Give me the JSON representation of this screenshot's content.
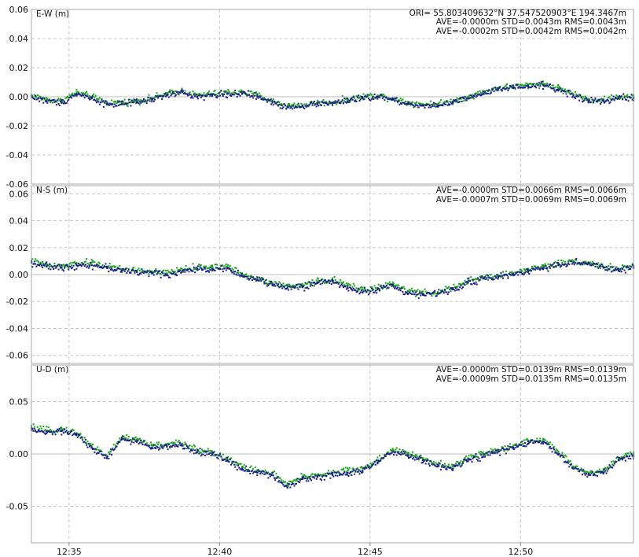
{
  "colors": {
    "series_green": "#12a312",
    "series_blue": "#1a1a8a",
    "grid": "#c8c8c8",
    "zero_line": "#bdbdbd",
    "panel_border": "#aaaaaa",
    "background": "#ffffff"
  },
  "header": {
    "origin_text": "ORI= 55.803409632°N  37.547520903°E 194.3467m"
  },
  "x_axis": {
    "range": [
      "12:33:45",
      "12:53:45"
    ],
    "ticks": [
      "12:35",
      "12:40",
      "12:45",
      "12:50"
    ]
  },
  "chart_data": [
    {
      "type": "scatter",
      "ylabel": "E-W (m)",
      "ylim": [
        -0.06,
        0.06
      ],
      "yticks": [
        "0.06",
        "0.04",
        "0.02",
        "0.00",
        "-0.02",
        "-0.04",
        "-0.06"
      ],
      "stats": [
        "AVE=-0.0000m STD=0.0043m RMS=0.0043m",
        "AVE=-0.0002m STD=0.0042m RMS=0.0042m"
      ],
      "grid": true,
      "series": [
        {
          "x": [
            "12:33:45",
            "12:34:15",
            "12:34:45",
            "12:35:15",
            "12:35:45",
            "12:36:15",
            "12:36:45",
            "12:37:15",
            "12:37:45",
            "12:38:15",
            "12:38:45",
            "12:39:15",
            "12:39:45",
            "12:40:15",
            "12:40:45",
            "12:41:15",
            "12:41:45",
            "12:42:15",
            "12:42:45",
            "12:43:15",
            "12:43:45",
            "12:44:15",
            "12:44:45",
            "12:45:15",
            "12:45:45",
            "12:46:15",
            "12:46:45",
            "12:47:15",
            "12:47:45",
            "12:48:15",
            "12:48:45",
            "12:49:15",
            "12:49:45",
            "12:50:15",
            "12:50:45",
            "12:51:15",
            "12:51:45",
            "12:52:15",
            "12:52:45",
            "12:53:15",
            "12:53:45"
          ],
          "values": [
            0.001,
            -0.002,
            -0.003,
            0.003,
            0.0,
            -0.004,
            -0.004,
            -0.003,
            -0.001,
            0.002,
            0.004,
            0.001,
            0.002,
            0.003,
            0.003,
            0.001,
            -0.003,
            -0.006,
            -0.006,
            -0.004,
            -0.004,
            -0.002,
            0.0,
            0.001,
            -0.001,
            -0.004,
            -0.005,
            -0.005,
            -0.003,
            0.0,
            0.003,
            0.006,
            0.007,
            0.008,
            0.009,
            0.006,
            0.002,
            -0.002,
            -0.002,
            0.0,
            0.0
          ]
        },
        {
          "x": [
            "12:33:45",
            "12:34:15",
            "12:34:45",
            "12:35:15",
            "12:35:45",
            "12:36:15",
            "12:36:45",
            "12:37:15",
            "12:37:45",
            "12:38:15",
            "12:38:45",
            "12:39:15",
            "12:39:45",
            "12:40:15",
            "12:40:45",
            "12:41:15",
            "12:41:45",
            "12:42:15",
            "12:42:45",
            "12:43:15",
            "12:43:45",
            "12:44:15",
            "12:44:45",
            "12:45:15",
            "12:45:45",
            "12:46:15",
            "12:46:45",
            "12:47:15",
            "12:47:45",
            "12:48:15",
            "12:48:45",
            "12:49:15",
            "12:49:45",
            "12:50:15",
            "12:50:45",
            "12:51:15",
            "12:51:45",
            "12:52:15",
            "12:52:45",
            "12:53:15",
            "12:53:45"
          ],
          "values": [
            0.0,
            -0.003,
            -0.004,
            0.002,
            -0.001,
            -0.005,
            -0.005,
            -0.004,
            -0.002,
            0.001,
            0.003,
            0.0,
            0.001,
            0.002,
            0.002,
            0.0,
            -0.004,
            -0.007,
            -0.006,
            -0.005,
            -0.004,
            -0.003,
            -0.001,
            0.0,
            -0.002,
            -0.005,
            -0.006,
            -0.006,
            -0.004,
            -0.001,
            0.002,
            0.005,
            0.006,
            0.007,
            0.008,
            0.005,
            0.001,
            -0.003,
            -0.003,
            -0.001,
            -0.001
          ]
        }
      ]
    },
    {
      "type": "scatter",
      "ylabel": "N-S (m)",
      "ylim": [
        -0.066,
        0.066
      ],
      "yticks": [
        "0.06",
        "0.04",
        "0.02",
        "0.00",
        "-0.02",
        "-0.04",
        "-0.06"
      ],
      "stats": [
        "AVE=-0.0000m STD=0.0066m RMS=0.0066m",
        "AVE=-0.0007m STD=0.0069m RMS=0.0069m"
      ],
      "grid": true,
      "series": [
        {
          "x": [
            "12:33:45",
            "12:34:15",
            "12:34:45",
            "12:35:15",
            "12:35:45",
            "12:36:15",
            "12:36:45",
            "12:37:15",
            "12:37:45",
            "12:38:15",
            "12:38:45",
            "12:39:15",
            "12:39:45",
            "12:40:15",
            "12:40:45",
            "12:41:15",
            "12:41:45",
            "12:42:15",
            "12:42:45",
            "12:43:15",
            "12:43:45",
            "12:44:15",
            "12:44:45",
            "12:45:15",
            "12:45:45",
            "12:46:15",
            "12:46:45",
            "12:47:15",
            "12:47:45",
            "12:48:15",
            "12:48:45",
            "12:49:15",
            "12:49:45",
            "12:50:15",
            "12:50:45",
            "12:51:15",
            "12:51:45",
            "12:52:15",
            "12:52:45",
            "12:53:15",
            "12:53:45"
          ],
          "values": [
            0.01,
            0.007,
            0.006,
            0.008,
            0.009,
            0.006,
            0.004,
            0.003,
            0.002,
            0.001,
            0.004,
            0.005,
            0.006,
            0.006,
            0.0,
            -0.003,
            -0.006,
            -0.009,
            -0.008,
            -0.005,
            -0.004,
            -0.008,
            -0.011,
            -0.01,
            -0.007,
            -0.012,
            -0.014,
            -0.013,
            -0.01,
            -0.005,
            -0.002,
            -0.001,
            0.001,
            0.004,
            0.006,
            0.008,
            0.01,
            0.009,
            0.006,
            0.004,
            0.006
          ]
        },
        {
          "x": [
            "12:33:45",
            "12:34:15",
            "12:34:45",
            "12:35:15",
            "12:35:45",
            "12:36:15",
            "12:36:45",
            "12:37:15",
            "12:37:45",
            "12:38:15",
            "12:38:45",
            "12:39:15",
            "12:39:45",
            "12:40:15",
            "12:40:45",
            "12:41:15",
            "12:41:45",
            "12:42:15",
            "12:42:45",
            "12:43:15",
            "12:43:45",
            "12:44:15",
            "12:44:45",
            "12:45:15",
            "12:45:45",
            "12:46:15",
            "12:46:45",
            "12:47:15",
            "12:47:45",
            "12:48:15",
            "12:48:45",
            "12:49:15",
            "12:49:45",
            "12:50:15",
            "12:50:45",
            "12:51:15",
            "12:51:45",
            "12:52:15",
            "12:52:45",
            "12:53:15",
            "12:53:45"
          ],
          "values": [
            0.009,
            0.006,
            0.005,
            0.007,
            0.007,
            0.005,
            0.003,
            0.002,
            0.001,
            0.0,
            0.002,
            0.004,
            0.004,
            0.005,
            -0.001,
            -0.004,
            -0.007,
            -0.01,
            -0.009,
            -0.006,
            -0.005,
            -0.01,
            -0.013,
            -0.011,
            -0.008,
            -0.014,
            -0.015,
            -0.014,
            -0.011,
            -0.006,
            -0.003,
            -0.002,
            0.0,
            0.003,
            0.005,
            0.007,
            0.009,
            0.008,
            0.005,
            0.003,
            0.005
          ]
        }
      ]
    },
    {
      "type": "scatter",
      "ylabel": "U-D (m)",
      "ylim": [
        -0.085,
        0.085
      ],
      "yticks": [
        "0.05",
        "0.00",
        "-0.05"
      ],
      "stats": [
        "AVE=-0.0000m STD=0.0139m RMS=0.0139m",
        "AVE=-0.0009m STD=0.0135m RMS=0.0135m"
      ],
      "grid": true,
      "series": [
        {
          "x": [
            "12:33:45",
            "12:34:15",
            "12:34:45",
            "12:35:15",
            "12:35:45",
            "12:36:15",
            "12:36:45",
            "12:37:15",
            "12:37:45",
            "12:38:15",
            "12:38:45",
            "12:39:15",
            "12:39:45",
            "12:40:15",
            "12:40:45",
            "12:41:15",
            "12:41:45",
            "12:42:15",
            "12:42:45",
            "12:43:15",
            "12:43:45",
            "12:44:15",
            "12:44:45",
            "12:45:15",
            "12:45:45",
            "12:46:15",
            "12:46:45",
            "12:47:15",
            "12:47:45",
            "12:48:15",
            "12:48:45",
            "12:49:15",
            "12:49:45",
            "12:50:15",
            "12:50:45",
            "12:51:15",
            "12:51:45",
            "12:52:15",
            "12:52:45",
            "12:53:15",
            "12:53:45"
          ],
          "values": [
            0.025,
            0.022,
            0.024,
            0.02,
            0.008,
            -0.002,
            0.016,
            0.014,
            0.008,
            0.009,
            0.01,
            0.004,
            0.002,
            -0.004,
            -0.012,
            -0.016,
            -0.018,
            -0.03,
            -0.022,
            -0.02,
            -0.018,
            -0.016,
            -0.014,
            -0.006,
            0.004,
            0.0,
            -0.004,
            -0.01,
            -0.012,
            -0.004,
            0.0,
            0.004,
            0.008,
            0.012,
            0.014,
            0.002,
            -0.012,
            -0.018,
            -0.016,
            -0.004,
            0.0
          ]
        },
        {
          "x": [
            "12:33:45",
            "12:34:15",
            "12:34:45",
            "12:35:15",
            "12:35:45",
            "12:36:15",
            "12:36:45",
            "12:37:15",
            "12:37:45",
            "12:38:15",
            "12:38:45",
            "12:39:15",
            "12:39:45",
            "12:40:15",
            "12:40:45",
            "12:41:15",
            "12:41:45",
            "12:42:15",
            "12:42:45",
            "12:43:15",
            "12:43:45",
            "12:44:15",
            "12:44:45",
            "12:45:15",
            "12:45:45",
            "12:46:15",
            "12:46:45",
            "12:47:15",
            "12:47:45",
            "12:48:15",
            "12:48:45",
            "12:49:15",
            "12:49:45",
            "12:50:15",
            "12:50:45",
            "12:51:15",
            "12:51:45",
            "12:52:15",
            "12:52:45",
            "12:53:15",
            "12:53:45"
          ],
          "values": [
            0.023,
            0.02,
            0.022,
            0.018,
            0.006,
            -0.004,
            0.014,
            0.012,
            0.006,
            0.007,
            0.008,
            0.002,
            0.0,
            -0.006,
            -0.014,
            -0.018,
            -0.02,
            -0.032,
            -0.024,
            -0.022,
            -0.02,
            -0.018,
            -0.016,
            -0.008,
            0.002,
            -0.002,
            -0.006,
            -0.012,
            -0.014,
            -0.006,
            -0.002,
            0.002,
            0.006,
            0.01,
            0.012,
            0.0,
            -0.014,
            -0.02,
            -0.018,
            -0.006,
            -0.002
          ]
        }
      ]
    }
  ]
}
